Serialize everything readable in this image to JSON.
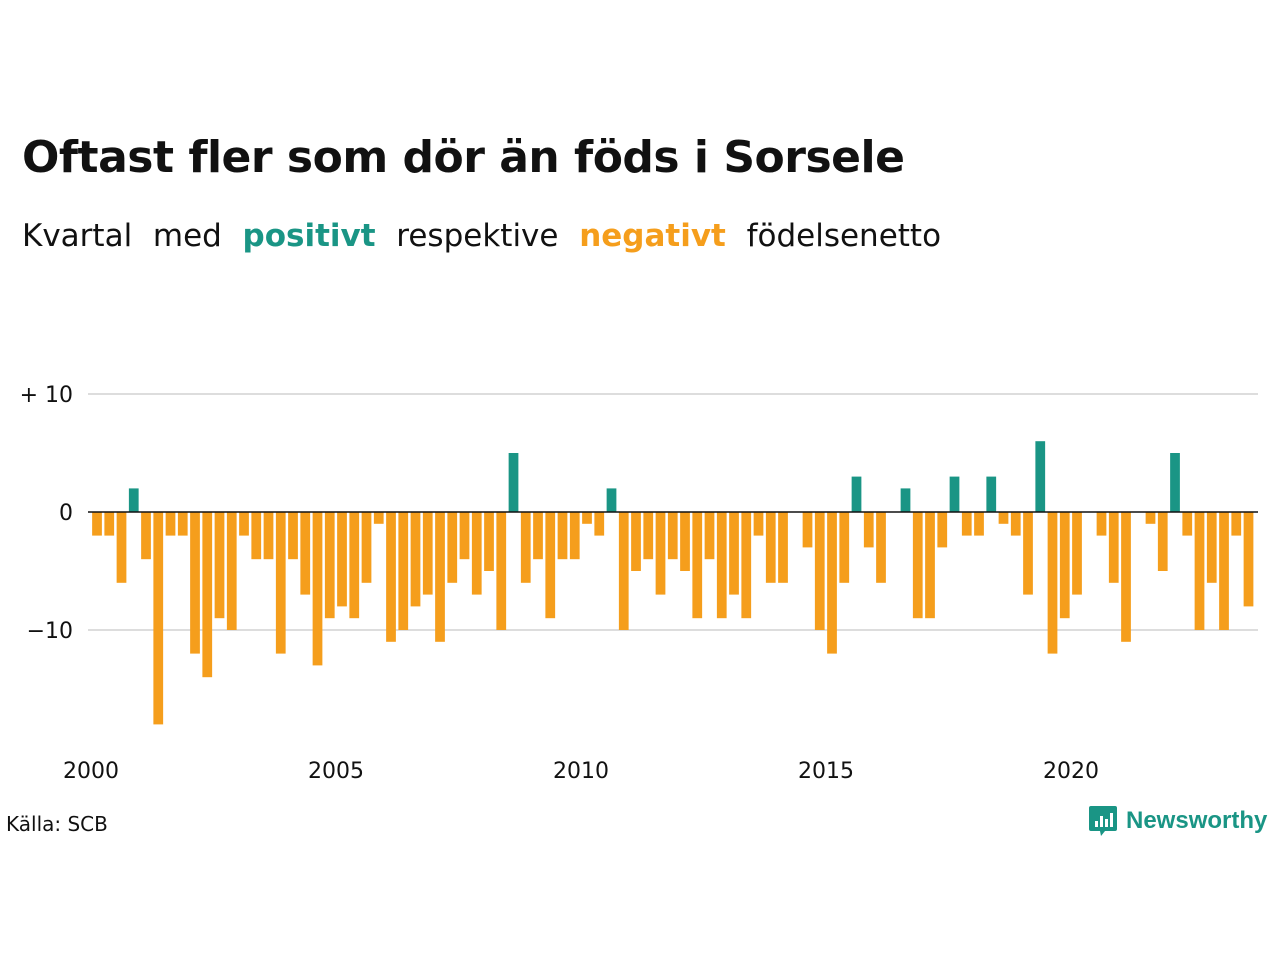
{
  "title": "Oftast fler som dör än föds i Sorsele",
  "subtitle": {
    "part1": "Kvartal",
    "part2": "med",
    "positive": "positivt",
    "part3": "respektive",
    "negative": "negativt",
    "part4": "födelsenetto"
  },
  "source": "Källa: SCB",
  "brand": "Newsworthy",
  "colors": {
    "positive": "#1a9585",
    "negative": "#f59e1c",
    "grid": "#dddddd",
    "zero_line": "#111111"
  },
  "chart_data": {
    "type": "bar",
    "title": "Oftast fler som dör än föds i Sorsele",
    "xlabel": "",
    "ylabel": "",
    "x_start": 2000.0,
    "x_step": 0.25,
    "xticks": [
      2000,
      2005,
      2010,
      2015,
      2020
    ],
    "yticks": [
      {
        "value": 10,
        "label": "+ 10"
      },
      {
        "value": 0,
        "label": "0"
      },
      {
        "value": -10,
        "label": "−10"
      }
    ],
    "ylim": [
      -20,
      10
    ],
    "grid": true,
    "values": [
      -2,
      -2,
      -6,
      2,
      -4,
      -18,
      -2,
      -2,
      -12,
      -14,
      -9,
      -10,
      -2,
      -4,
      -4,
      -12,
      -4,
      -7,
      -13,
      -9,
      -8,
      -9,
      -6,
      -1,
      -11,
      -10,
      -8,
      -7,
      -11,
      -6,
      -4,
      -7,
      -5,
      -10,
      5,
      -6,
      -4,
      -9,
      -4,
      -4,
      -1,
      -2,
      2,
      -10,
      -5,
      -4,
      -7,
      -4,
      -5,
      -9,
      -4,
      -9,
      -7,
      -9,
      -2,
      -6,
      -6,
      0,
      -3,
      -10,
      -12,
      -6,
      3,
      -3,
      -6,
      0,
      2,
      -9,
      -9,
      -3,
      3,
      -2,
      -2,
      3,
      -1,
      -2,
      -7,
      6,
      -12,
      -9,
      -7,
      0,
      -2,
      -6,
      -11,
      0,
      -1,
      -5,
      5,
      -2,
      -10,
      -6,
      -10,
      -2,
      -8
    ]
  }
}
